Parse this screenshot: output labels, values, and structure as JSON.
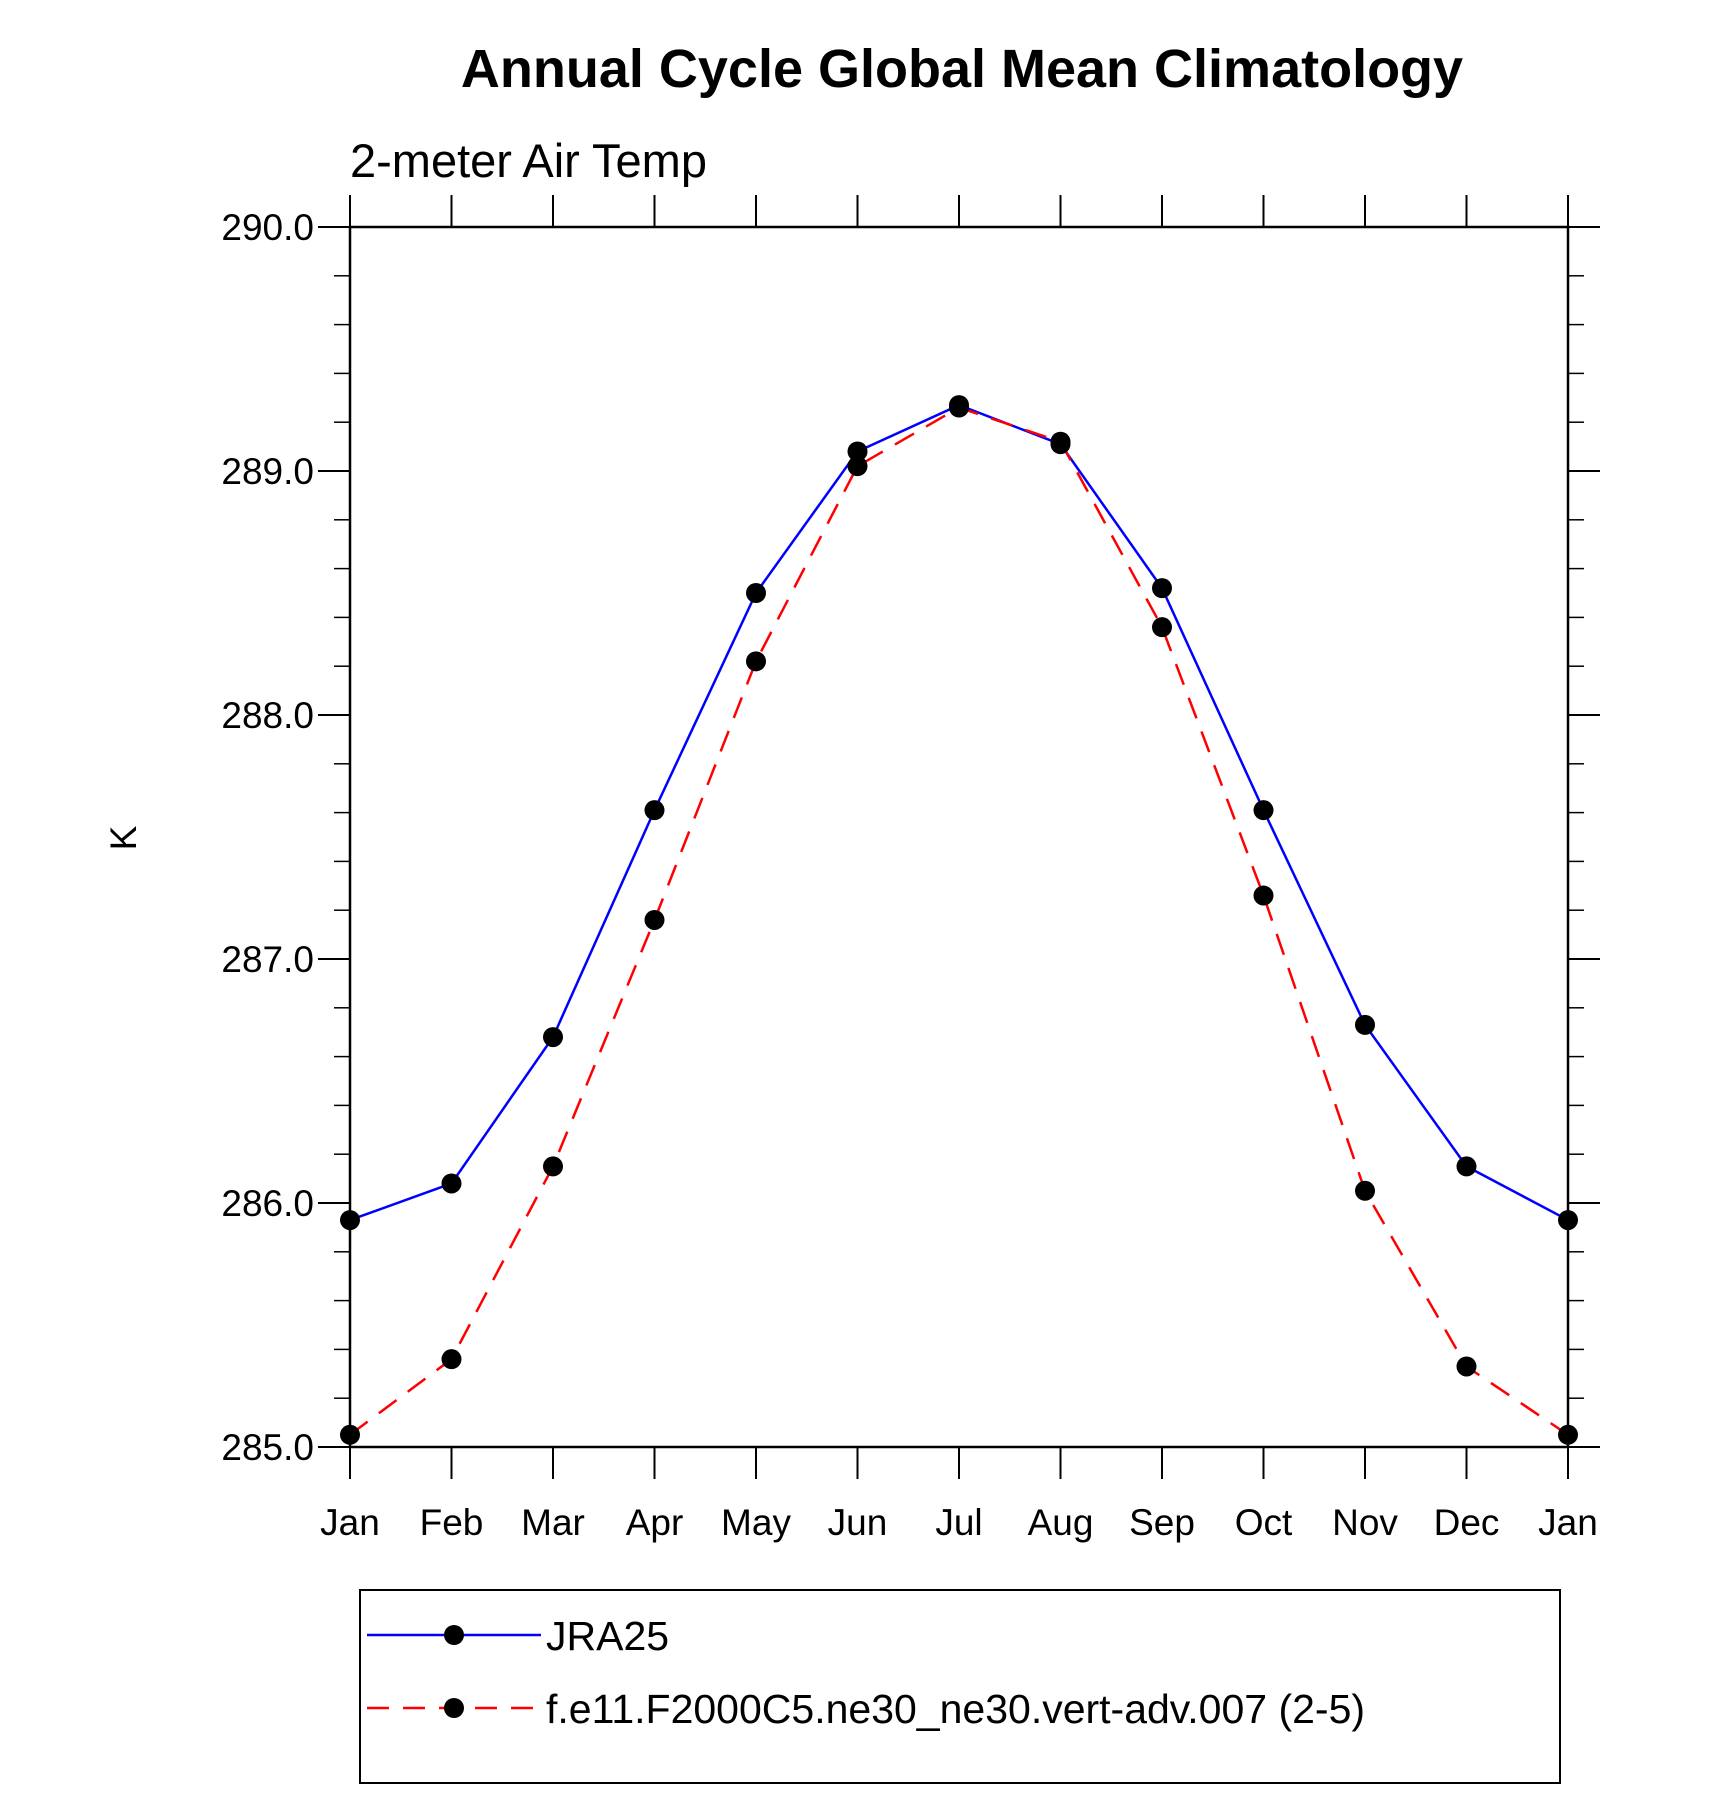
{
  "chart_data": {
    "type": "line",
    "title": "Annual Cycle Global Mean Climatology",
    "subtitle": "2-meter Air Temp",
    "xlabel": "",
    "ylabel": "K",
    "categories": [
      "Jan",
      "Feb",
      "Mar",
      "Apr",
      "May",
      "Jun",
      "Jul",
      "Aug",
      "Sep",
      "Oct",
      "Nov",
      "Dec",
      "Jan"
    ],
    "ylim": [
      285.0,
      290.0
    ],
    "yticks": [
      "285.0",
      "286.0",
      "287.0",
      "288.0",
      "289.0",
      "290.0"
    ],
    "series": [
      {
        "name": "JRA25",
        "color": "#0000ff",
        "dash": "solid",
        "values": [
          285.93,
          286.08,
          286.68,
          287.61,
          288.5,
          289.08,
          289.27,
          289.11,
          288.52,
          287.61,
          286.73,
          286.15,
          285.93
        ]
      },
      {
        "name": "f.e11.F2000C5.ne30_ne30.vert-adv.007 (2-5)",
        "color": "#ff0000",
        "dash": "dashed",
        "values": [
          285.05,
          285.36,
          286.15,
          287.16,
          288.22,
          289.02,
          289.26,
          289.12,
          288.36,
          287.26,
          286.05,
          285.33,
          285.05
        ]
      }
    ],
    "legend": "bottom"
  }
}
